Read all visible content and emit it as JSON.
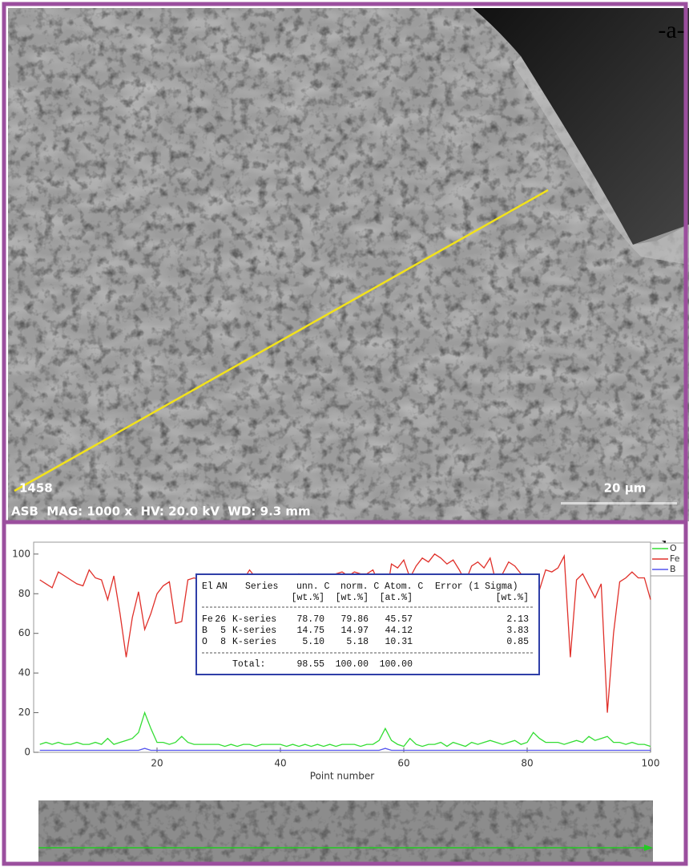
{
  "panel_a": {
    "label": "-a-",
    "sample_id": "1458",
    "info": "ASB  MAG: 1000 x  HV: 20.0 kV  WD: 9.3 mm",
    "scale_bar": "20 µm"
  },
  "panel_b": {
    "label": "-b-"
  },
  "chart_data": {
    "type": "line",
    "x_label": "Point number",
    "x": [
      1,
      2,
      3,
      4,
      5,
      6,
      7,
      8,
      9,
      10,
      11,
      12,
      13,
      14,
      15,
      16,
      17,
      18,
      19,
      20,
      21,
      22,
      23,
      24,
      25,
      26,
      27,
      28,
      29,
      30,
      31,
      32,
      33,
      34,
      35,
      36,
      37,
      38,
      39,
      40,
      41,
      42,
      43,
      44,
      45,
      46,
      47,
      48,
      49,
      50,
      51,
      52,
      53,
      54,
      55,
      56,
      57,
      58,
      59,
      60,
      61,
      62,
      63,
      64,
      65,
      66,
      67,
      68,
      69,
      70,
      71,
      72,
      73,
      74,
      75,
      76,
      77,
      78,
      79,
      80,
      81,
      82,
      83,
      84,
      85,
      86,
      87,
      88,
      89,
      90,
      91,
      92,
      93,
      94,
      95,
      96,
      97,
      98,
      99,
      100
    ],
    "xlim": [
      0,
      100
    ],
    "xticks": [
      20,
      40,
      60,
      80,
      100
    ],
    "ylim": [
      0,
      106
    ],
    "yticks": [
      0,
      20,
      40,
      60,
      80,
      100
    ],
    "legend": "top-right",
    "series": [
      {
        "name": "O",
        "color": "#33dd33",
        "values": [
          4,
          5,
          4,
          5,
          4,
          4,
          5,
          4,
          4,
          5,
          4,
          7,
          4,
          5,
          6,
          7,
          10,
          20,
          12,
          5,
          5,
          4,
          5,
          8,
          5,
          4,
          4,
          4,
          4,
          4,
          3,
          4,
          3,
          4,
          4,
          3,
          4,
          4,
          4,
          4,
          3,
          4,
          3,
          4,
          3,
          4,
          3,
          4,
          3,
          4,
          4,
          4,
          3,
          4,
          4,
          6,
          12,
          6,
          4,
          3,
          7,
          4,
          3,
          4,
          4,
          5,
          3,
          5,
          4,
          3,
          5,
          4,
          5,
          6,
          5,
          4,
          5,
          6,
          4,
          5,
          10,
          7,
          5,
          5,
          5,
          4,
          5,
          6,
          5,
          8,
          6,
          7,
          8,
          5,
          5,
          4,
          5,
          4,
          4,
          3
        ]
      },
      {
        "name": "Fe",
        "color": "#e0302a",
        "values": [
          87,
          85,
          83,
          91,
          89,
          87,
          85,
          84,
          92,
          88,
          87,
          77,
          89,
          70,
          48,
          68,
          81,
          62,
          70,
          80,
          84,
          86,
          65,
          66,
          87,
          88,
          87,
          89,
          87,
          85,
          83,
          86,
          88,
          87,
          92,
          88,
          87,
          88,
          89,
          87,
          88,
          81,
          90,
          89,
          87,
          86,
          89,
          88,
          90,
          91,
          89,
          91,
          90,
          90,
          92,
          85,
          75,
          95,
          93,
          97,
          88,
          94,
          98,
          96,
          100,
          98,
          95,
          97,
          92,
          86,
          94,
          96,
          93,
          98,
          85,
          90,
          96,
          94,
          90,
          86,
          72,
          82,
          92,
          91,
          93,
          99,
          48,
          87,
          90,
          84,
          78,
          85,
          20,
          60,
          86,
          88,
          91,
          88,
          88,
          77
        ]
      },
      {
        "name": "B",
        "color": "#5555ee",
        "values": [
          1,
          1,
          1,
          1,
          1,
          1,
          1,
          1,
          1,
          1,
          1,
          1,
          1,
          1,
          1,
          1,
          1,
          2,
          1,
          1,
          1,
          1,
          1,
          1,
          1,
          1,
          1,
          1,
          1,
          1,
          1,
          1,
          1,
          1,
          1,
          1,
          1,
          1,
          1,
          1,
          1,
          1,
          1,
          1,
          1,
          1,
          1,
          1,
          1,
          1,
          1,
          1,
          1,
          1,
          1,
          1,
          2,
          1,
          1,
          1,
          1,
          1,
          1,
          1,
          1,
          1,
          1,
          1,
          1,
          1,
          1,
          1,
          1,
          1,
          1,
          1,
          1,
          1,
          1,
          1,
          1,
          1,
          1,
          1,
          1,
          1,
          1,
          1,
          1,
          1,
          1,
          1,
          1,
          1,
          1,
          1,
          1,
          1,
          1,
          1
        ]
      }
    ]
  },
  "table": {
    "header": [
      "El",
      "AN",
      "Series",
      "unn. C",
      "norm. C",
      "Atom. C",
      "Error (1 Sigma)"
    ],
    "units": [
      "[wt.%]",
      "[wt.%]",
      "[at.%]",
      "[wt.%]"
    ],
    "rows": [
      [
        "Fe",
        "26",
        "K-series",
        "78.70",
        "79.86",
        "45.57",
        "2.13"
      ],
      [
        "B",
        "5",
        "K-series",
        "14.75",
        "14.97",
        "44.12",
        "3.83"
      ],
      [
        "O",
        "8",
        "K-series",
        "5.10",
        "5.18",
        "10.31",
        "0.85"
      ]
    ],
    "total_label": "Total:",
    "total": [
      "98.55",
      "100.00",
      "100.00"
    ]
  }
}
